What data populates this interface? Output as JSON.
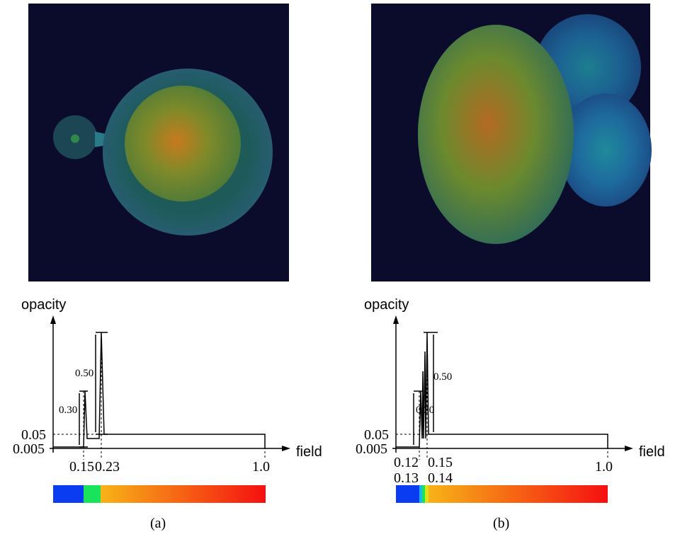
{
  "panels": [
    {
      "caption": "(a)",
      "y_axis_label": "opacity",
      "x_axis_label": "field",
      "y_labels": [
        "0.05",
        "0.005"
      ],
      "peak_labels": [
        "0.50",
        "0.30"
      ],
      "x_labels": [
        "0.15",
        "0.23",
        "1.0"
      ]
    },
    {
      "caption": "(b)",
      "y_axis_label": "opacity",
      "x_axis_label": "field",
      "y_labels": [
        "0.05",
        "0.005"
      ],
      "peak_labels": [
        "0.50",
        "0.30"
      ],
      "x_labels": [
        "0.12",
        "0.15",
        "1.0",
        "0.13",
        "0.14"
      ]
    }
  ]
}
